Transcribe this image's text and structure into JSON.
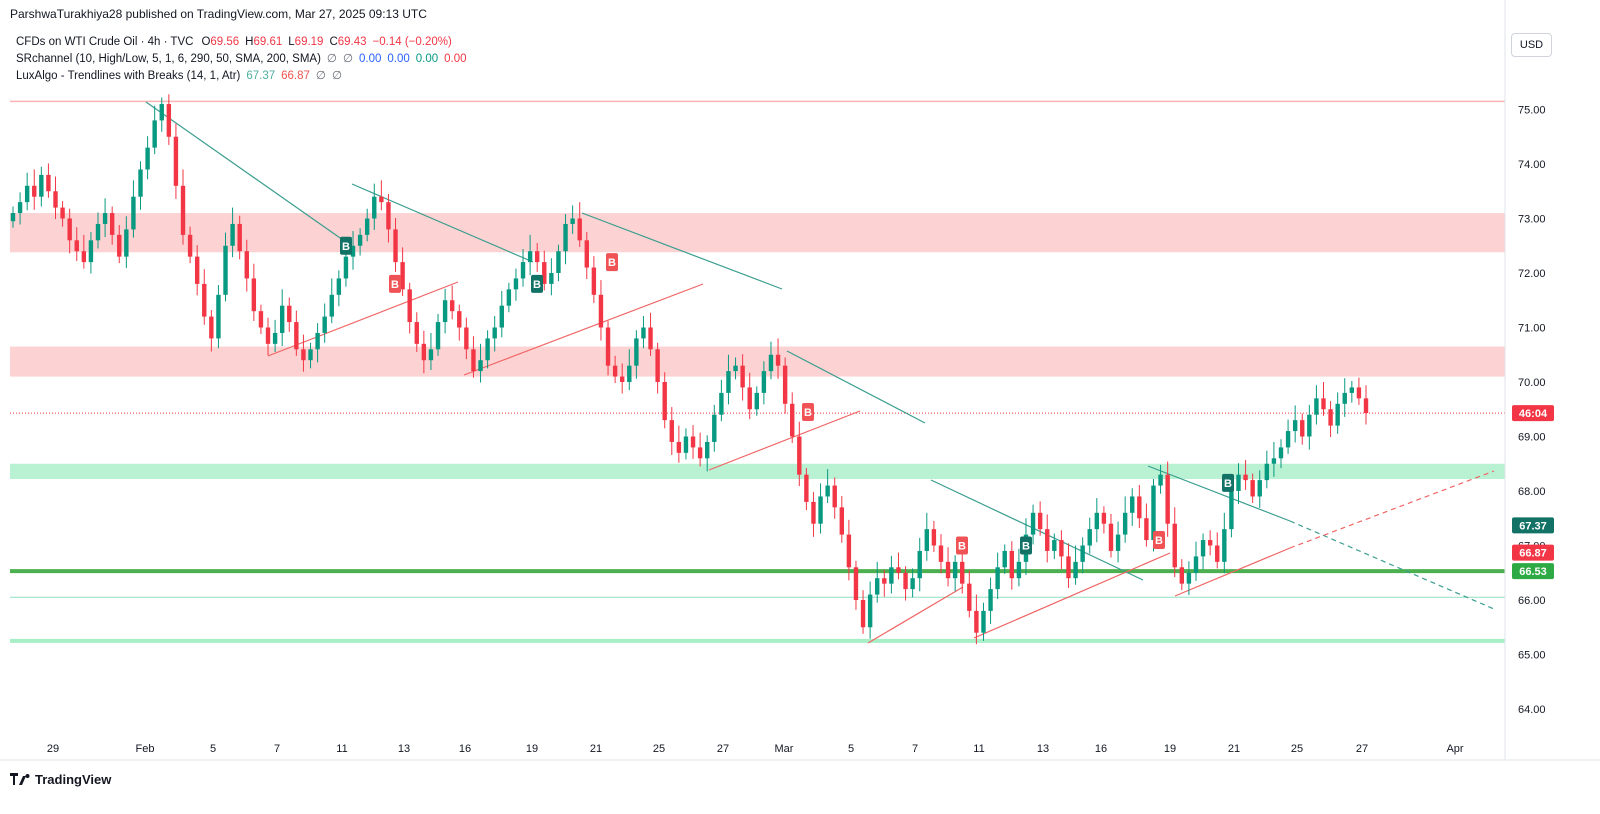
{
  "header": {
    "published": "ParshwaTurakhiya28 published on TradingView.com, Mar 27, 2025 09:13 UTC"
  },
  "legend": {
    "symbol": "CFDs on WTI Crude Oil · 4h · TVC",
    "o_label": "O",
    "o_value": "69.56",
    "h_label": "H",
    "h_value": "69.61",
    "l_label": "L",
    "l_value": "69.19",
    "c_label": "C",
    "c_value": "69.43",
    "change": "−0.14 (−0.20%)",
    "ind1_name": "SRchannel (10, High/Low, 5, 1, 6, 290, 50, SMA, 200, SMA)",
    "ind1_sym1": "∅",
    "ind1_sym2": "∅",
    "ind1_v1": "0.00",
    "ind1_v2": "0.00",
    "ind1_v3": "0.00",
    "ind1_v4": "0.00",
    "ind2_name": "LuxAlgo - Trendlines with Breaks (14, 1, Atr)",
    "ind2_v1": "67.37",
    "ind2_v2": "66.87",
    "ind2_sym1": "∅",
    "ind2_sym2": "∅"
  },
  "currency": "USD",
  "brand": "TradingView",
  "chart_data": {
    "type": "candlestick",
    "y_ticks": [
      "75.00",
      "74.00",
      "73.00",
      "72.00",
      "71.00",
      "70.00",
      "69.00",
      "68.00",
      "67.00",
      "66.00",
      "65.00",
      "64.00"
    ],
    "y_tick_values": [
      75,
      74,
      73,
      72,
      71,
      70,
      69,
      68,
      67,
      66,
      65,
      64
    ],
    "x_ticks": [
      "29",
      "Feb",
      "5",
      "7",
      "11",
      "13",
      "16",
      "19",
      "21",
      "25",
      "27",
      "Mar",
      "5",
      "7",
      "11",
      "13",
      "16",
      "19",
      "21",
      "25",
      "27",
      "Apr"
    ],
    "price_labels": [
      {
        "text": "46:04",
        "value": 69.43,
        "color": "#f23645"
      },
      {
        "text": "67.37",
        "value": 67.37,
        "color": "#137266"
      },
      {
        "text": "66.87",
        "value": 66.87,
        "color": "#f23645"
      },
      {
        "text": "66.53",
        "value": 66.53,
        "color": "#2eaa44"
      }
    ],
    "resistance_zones": [
      [
        72.38,
        73.1
      ],
      [
        70.1,
        70.65
      ]
    ],
    "support_zones": [
      [
        68.22,
        68.5
      ]
    ],
    "support_lines": [
      66.53,
      66.05,
      65.25,
      75.15
    ],
    "signals": [
      {
        "letter": "B",
        "type": "bull",
        "price": 72.5
      },
      {
        "letter": "B",
        "type": "bear",
        "price": 71.8
      },
      {
        "letter": "B",
        "type": "bull",
        "price": 71.8
      },
      {
        "letter": "B",
        "type": "bear",
        "price": 72.2
      },
      {
        "letter": "B",
        "type": "bear",
        "price": 69.45
      },
      {
        "letter": "B",
        "type": "bear",
        "price": 67.0
      },
      {
        "letter": "B",
        "type": "bull",
        "price": 67.0
      },
      {
        "letter": "B",
        "type": "bear",
        "price": 67.1
      },
      {
        "letter": "B",
        "type": "bull",
        "price": 68.15
      }
    ],
    "colors": {
      "up": "#089981",
      "down": "#f23645",
      "trend_down": "#3a9e8f",
      "trend_up": "#f06565",
      "zone_red": "#fbb4b4",
      "zone_green": "#a8efc8",
      "sr_green": "#4caf50"
    },
    "series_close": [
      73.1,
      73.3,
      73.6,
      73.4,
      73.8,
      73.5,
      73.2,
      73.0,
      72.6,
      72.4,
      72.2,
      72.6,
      72.9,
      73.1,
      72.7,
      72.3,
      72.8,
      73.4,
      73.9,
      74.3,
      74.8,
      75.1,
      74.5,
      73.6,
      72.7,
      72.3,
      71.8,
      71.2,
      70.8,
      71.6,
      72.5,
      72.9,
      72.4,
      71.9,
      71.3,
      71.0,
      70.7,
      70.9,
      71.4,
      71.1,
      70.6,
      70.4,
      70.6,
      70.9,
      71.2,
      71.6,
      71.9,
      72.3,
      72.5,
      72.7,
      73.0,
      73.4,
      73.3,
      72.8,
      72.2,
      71.7,
      71.1,
      70.7,
      70.4,
      70.6,
      71.1,
      71.5,
      71.3,
      71.0,
      70.6,
      70.2,
      70.4,
      70.8,
      71.0,
      71.4,
      71.7,
      71.9,
      72.2,
      72.4,
      72.2,
      71.8,
      72.0,
      72.4,
      72.9,
      73.0,
      72.6,
      72.1,
      71.6,
      71.0,
      70.3,
      70.1,
      70.0,
      70.3,
      70.8,
      71.0,
      70.6,
      70.0,
      69.3,
      68.9,
      68.7,
      69.0,
      68.8,
      68.6,
      68.9,
      69.4,
      69.8,
      70.2,
      70.3,
      69.9,
      69.5,
      69.8,
      70.2,
      70.5,
      70.3,
      69.6,
      69.0,
      68.3,
      67.8,
      67.4,
      67.9,
      68.1,
      67.7,
      67.2,
      66.6,
      66.0,
      65.5,
      66.1,
      66.4,
      66.3,
      66.6,
      66.5,
      66.2,
      66.4,
      66.9,
      67.3,
      67.0,
      66.7,
      66.4,
      66.7,
      66.3,
      65.8,
      65.4,
      65.8,
      66.2,
      66.6,
      66.9,
      66.4,
      66.7,
      67.2,
      67.6,
      67.3,
      66.9,
      67.1,
      66.8,
      66.4,
      66.7,
      67.0,
      67.3,
      67.6,
      67.4,
      66.9,
      67.2,
      67.6,
      67.9,
      67.5,
      67.1,
      68.1,
      68.3,
      67.4,
      66.6,
      66.3,
      66.5,
      66.8,
      67.1,
      67.0,
      66.7,
      67.3,
      68.0,
      68.3,
      68.2,
      67.9,
      68.2,
      68.5,
      68.6,
      68.8,
      69.1,
      69.3,
      69.0,
      69.4,
      69.7,
      69.5,
      69.2,
      69.6,
      69.8,
      69.9,
      69.7,
      69.43
    ]
  }
}
